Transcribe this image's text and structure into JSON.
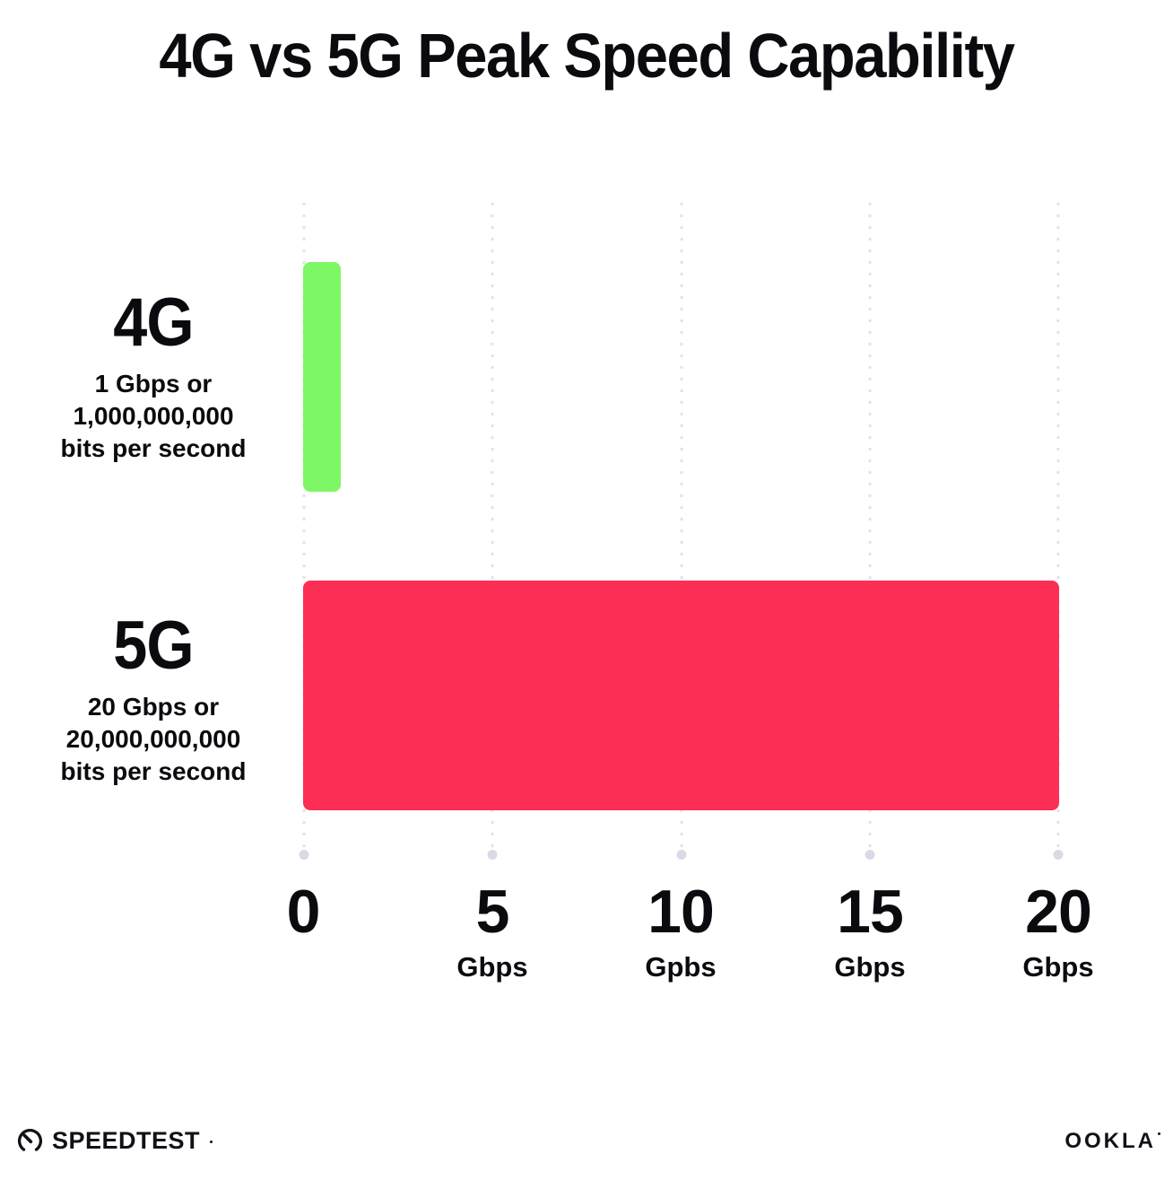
{
  "title": "4G vs 5G Peak Speed Capability",
  "chart_data": {
    "type": "bar",
    "orientation": "horizontal",
    "title": "4G vs 5G Peak Speed Capability",
    "categories": [
      "4G",
      "5G"
    ],
    "values": [
      1,
      20
    ],
    "xlim": [
      0,
      20
    ],
    "xticks": [
      0,
      5,
      10,
      15,
      20
    ],
    "xlabel": "Gbps",
    "ylabel": "",
    "grid": "dotted-vertical",
    "legend": "none",
    "bar_colors": [
      "#7df765",
      "#fd2e55"
    ],
    "annotations": [
      "4G: 1 Gbps or 1,000,000,000 bits per second",
      "5G: 20 Gbps or 20,000,000,000 bits per second"
    ]
  },
  "rows": [
    {
      "name": "4G",
      "desc": [
        "1 Gbps or",
        "1,000,000,000",
        "bits per second"
      ],
      "value": 1,
      "color": "#7df765"
    },
    {
      "name": "5G",
      "desc": [
        "20 Gbps or",
        "20,000,000,000",
        "bits per second"
      ],
      "value": 20,
      "color": "#fd2e55"
    }
  ],
  "axis": {
    "ticks": [
      {
        "label": "0",
        "unit": ""
      },
      {
        "label": "5",
        "unit": "Gbps"
      },
      {
        "label": "10",
        "unit": "Gpbs"
      },
      {
        "label": "15",
        "unit": "Gbps"
      },
      {
        "label": "20",
        "unit": "Gbps"
      }
    ]
  },
  "footer": {
    "speedtest_label": "SPEEDTEST",
    "ookla_label": "OOKLA"
  }
}
